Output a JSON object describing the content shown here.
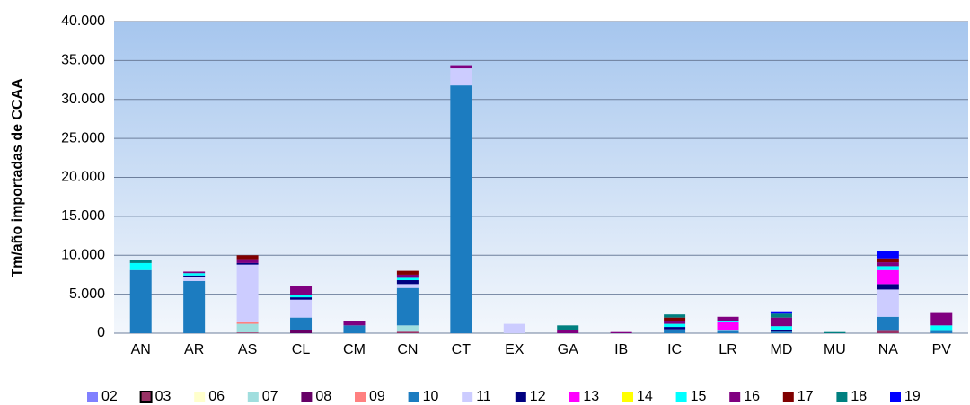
{
  "chart_data": {
    "type": "stacked_bar",
    "y_label": "Tm/año importadas de CCAA",
    "categories": [
      "AN",
      "AR",
      "AS",
      "CL",
      "CM",
      "CN",
      "CT",
      "EX",
      "GA",
      "IB",
      "IC",
      "LR",
      "MD",
      "MU",
      "NA",
      "PV"
    ],
    "ylim": [
      0,
      40000
    ],
    "yticks": [
      0,
      {
        "value": 5000,
        "label": "5.000"
      },
      {
        "value": 10000,
        "label": "10.000"
      },
      {
        "value": 15000,
        "label": "15.000"
      },
      {
        "value": 20000,
        "label": "20.000"
      },
      {
        "value": 25000,
        "label": "25.000"
      },
      {
        "value": 30000,
        "label": "30.000"
      },
      {
        "value": 35000,
        "label": "35.000"
      },
      {
        "value": 40000,
        "label": "40.000"
      }
    ],
    "grid": true,
    "legend": "bottom",
    "series": [
      {
        "name": "02",
        "color": "#8080ff",
        "values": [
          0,
          0,
          0,
          0,
          0,
          0,
          0,
          0,
          0,
          0,
          0,
          0,
          0,
          0,
          0,
          0
        ]
      },
      {
        "name": "03",
        "color": "#993366",
        "values": [
          0,
          0,
          100,
          0,
          0,
          200,
          0,
          0,
          0,
          0,
          0,
          0,
          0,
          0,
          300,
          0
        ]
      },
      {
        "name": "06",
        "color": "#ffffcc",
        "values": [
          0,
          0,
          0,
          0,
          0,
          0,
          0,
          0,
          0,
          0,
          0,
          0,
          0,
          0,
          0,
          0
        ]
      },
      {
        "name": "07",
        "color": "#a0dede",
        "values": [
          0,
          0,
          1100,
          0,
          0,
          800,
          0,
          0,
          0,
          0,
          0,
          0,
          0,
          0,
          0,
          0
        ]
      },
      {
        "name": "08",
        "color": "#660066",
        "values": [
          0,
          0,
          0,
          400,
          0,
          0,
          0,
          0,
          0,
          0,
          0,
          0,
          0,
          0,
          0,
          0
        ]
      },
      {
        "name": "09",
        "color": "#ff8080",
        "values": [
          0,
          0,
          200,
          0,
          0,
          0,
          0,
          0,
          0,
          0,
          0,
          0,
          0,
          0,
          0,
          0
        ]
      },
      {
        "name": "10",
        "color": "#1c7cc0",
        "values": [
          8100,
          6700,
          0,
          1600,
          1000,
          4800,
          31800,
          0,
          0,
          0,
          500,
          300,
          200,
          0,
          1800,
          300
        ]
      },
      {
        "name": "11",
        "color": "#ccccff",
        "values": [
          0,
          500,
          7400,
          2300,
          0,
          500,
          2200,
          1200,
          0,
          0,
          0,
          100,
          0,
          0,
          3500,
          0
        ]
      },
      {
        "name": "12",
        "color": "#000080",
        "values": [
          0,
          200,
          200,
          300,
          0,
          500,
          0,
          0,
          0,
          0,
          300,
          0,
          200,
          0,
          700,
          0
        ]
      },
      {
        "name": "13",
        "color": "#ff00ff",
        "values": [
          0,
          0,
          0,
          0,
          0,
          0,
          0,
          0,
          0,
          0,
          0,
          1000,
          0,
          0,
          1800,
          0
        ]
      },
      {
        "name": "14",
        "color": "#ffff00",
        "values": [
          0,
          0,
          0,
          0,
          0,
          0,
          0,
          0,
          0,
          0,
          0,
          0,
          0,
          0,
          0,
          0
        ]
      },
      {
        "name": "15",
        "color": "#00ffff",
        "values": [
          900,
          300,
          0,
          300,
          0,
          300,
          0,
          0,
          0,
          0,
          400,
          200,
          500,
          0,
          500,
          700
        ]
      },
      {
        "name": "16",
        "color": "#800080",
        "values": [
          0,
          200,
          500,
          1200,
          600,
          400,
          400,
          0,
          400,
          150,
          400,
          500,
          1100,
          0,
          500,
          1700
        ]
      },
      {
        "name": "17",
        "color": "#800000",
        "values": [
          0,
          0,
          500,
          0,
          0,
          500,
          0,
          0,
          0,
          0,
          400,
          0,
          0,
          0,
          500,
          0
        ]
      },
      {
        "name": "18",
        "color": "#008080",
        "values": [
          400,
          0,
          0,
          0,
          0,
          0,
          0,
          0,
          600,
          0,
          400,
          0,
          500,
          150,
          0,
          0
        ]
      },
      {
        "name": "19",
        "color": "#0000ff",
        "values": [
          0,
          0,
          0,
          0,
          0,
          0,
          0,
          0,
          0,
          0,
          0,
          0,
          300,
          0,
          900,
          0
        ]
      }
    ]
  }
}
